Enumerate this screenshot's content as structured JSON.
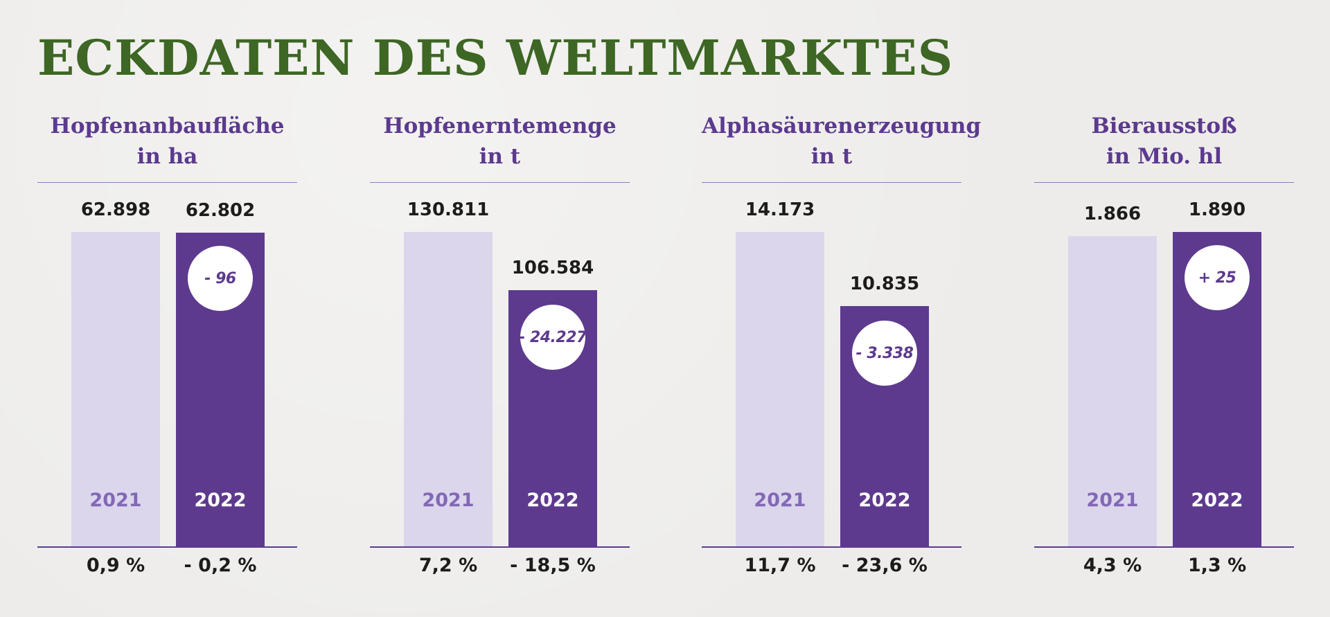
{
  "title": "ECKDATEN DES WELTMARKTES",
  "chart_data": [
    {
      "type": "bar",
      "title_line1": "Hopfenanbaufläche",
      "title_line2": "in ha",
      "categories": [
        "2021",
        "2022"
      ],
      "values": [
        62898,
        62802
      ],
      "value_labels": [
        "62.898",
        "62.802"
      ],
      "change_labels": [
        "0,9 %",
        "- 0,2 %"
      ],
      "delta_label": "- 96"
    },
    {
      "type": "bar",
      "title_line1": "Hopfenerntemenge",
      "title_line2": "in t",
      "categories": [
        "2021",
        "2022"
      ],
      "values": [
        130811,
        106584
      ],
      "value_labels": [
        "130.811",
        "106.584"
      ],
      "change_labels": [
        "7,2 %",
        "- 18,5 %"
      ],
      "delta_label": "- 24.227"
    },
    {
      "type": "bar",
      "title_line1": "Alphasäurenerzeugung",
      "title_line2": "in t",
      "categories": [
        "2021",
        "2022"
      ],
      "values": [
        14173,
        10835
      ],
      "value_labels": [
        "14.173",
        "10.835"
      ],
      "change_labels": [
        "11,7 %",
        "- 23,6 %"
      ],
      "delta_label": "- 3.338"
    },
    {
      "type": "bar",
      "title_line1": "Bierausstoß",
      "title_line2": "in Mio. hl",
      "categories": [
        "2021",
        "2022"
      ],
      "values": [
        1866,
        1890
      ],
      "value_labels": [
        "1.866",
        "1.890"
      ],
      "change_labels": [
        "4,3 %",
        "1,3 %"
      ],
      "delta_label": "+ 25"
    }
  ],
  "colors": {
    "title": "#3e6624",
    "accent": "#5c3a8e",
    "bar_2021": "#dbd6ec",
    "bar_2022": "#5d3a8e",
    "label_2021": "#8268b5"
  }
}
